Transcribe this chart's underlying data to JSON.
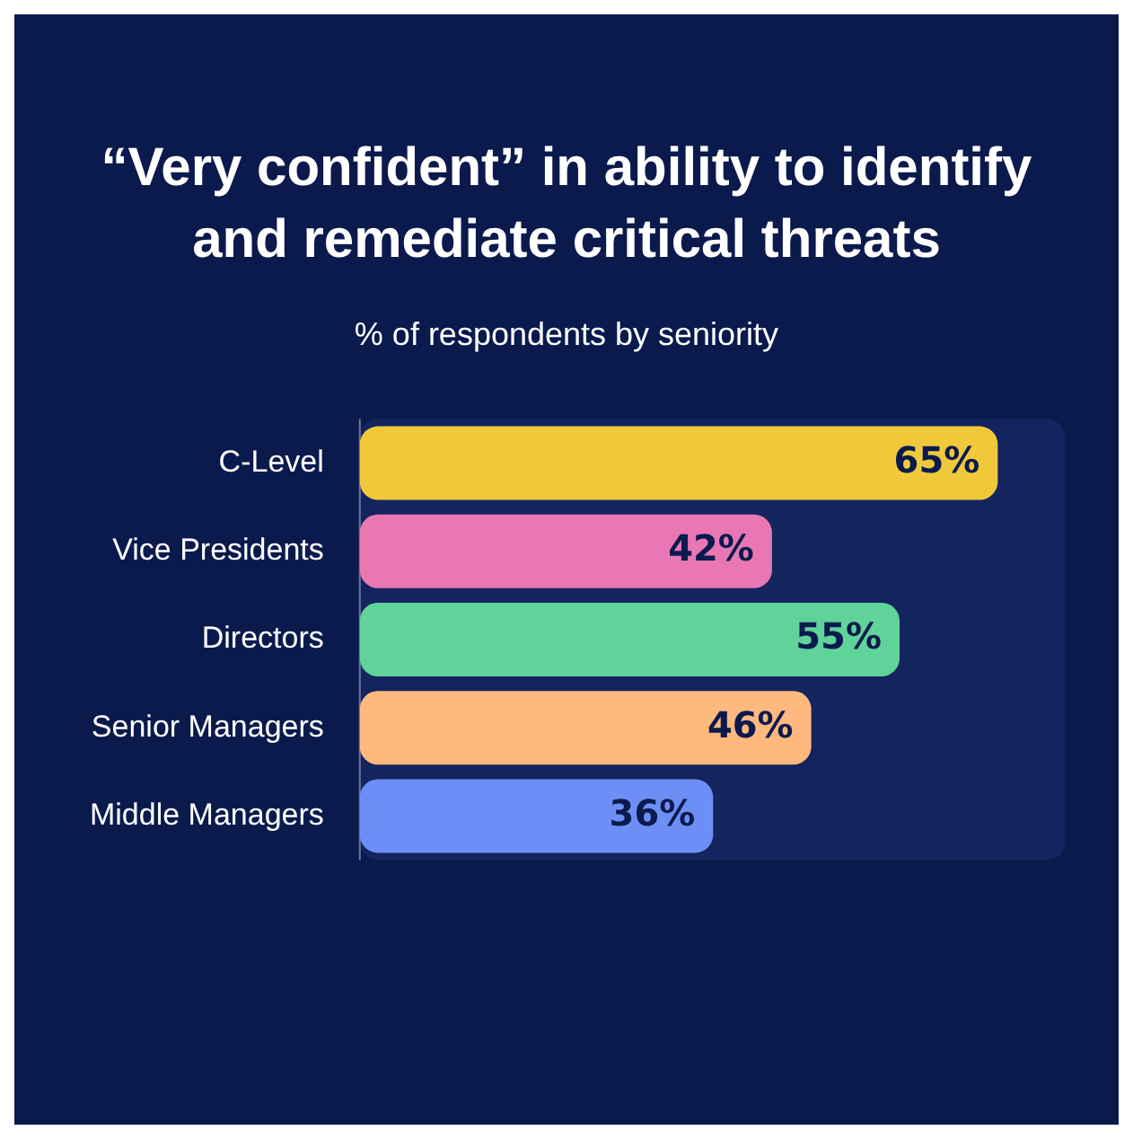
{
  "chart_data": {
    "type": "bar",
    "orientation": "horizontal",
    "title": "“Very confident” in ability to identify and remediate critical threats",
    "subtitle": "% of respondents by seniority",
    "categories": [
      "C-Level",
      "Vice Presidents",
      "Directors",
      "Senior Managers",
      "Middle Managers"
    ],
    "values": [
      65,
      42,
      55,
      46,
      36
    ],
    "colors": [
      "#f0c93a",
      "#e977b4",
      "#5fd39a",
      "#ffb87e",
      "#6d8ff5"
    ],
    "value_labels": [
      "65%",
      "42%",
      "55%",
      "46%",
      "36%"
    ],
    "tick_labels": "y",
    "legend": false
  }
}
